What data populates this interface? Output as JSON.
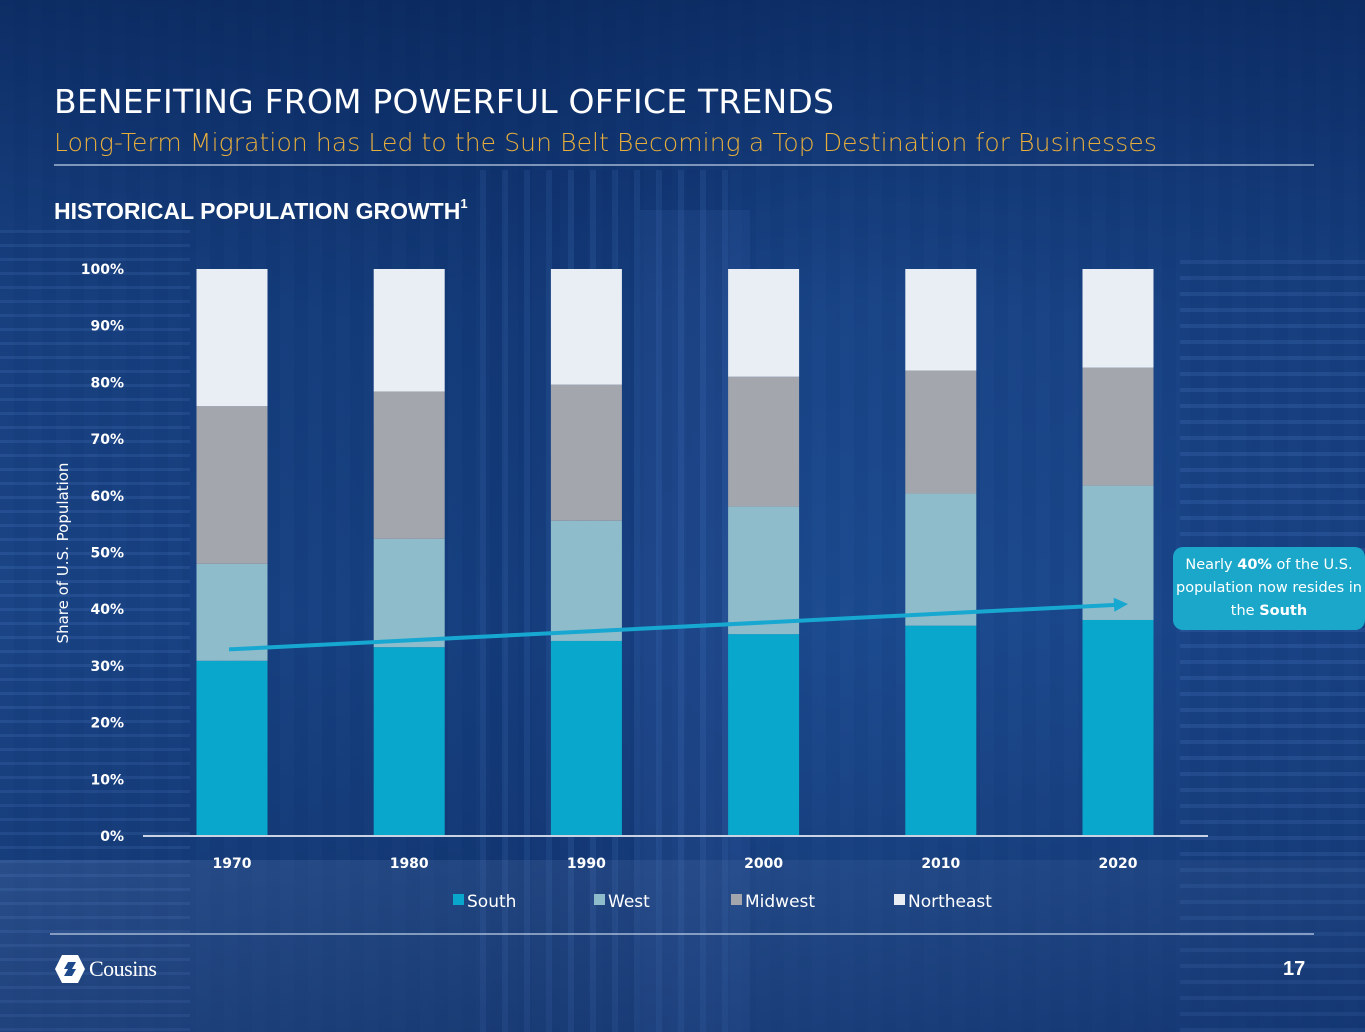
{
  "slide": {
    "title": "BENEFITING FROM POWERFUL OFFICE TRENDS",
    "subtitle": "Long-Term Migration has Led to the Sun Belt Becoming a Top Destination for Businesses",
    "section_title": "HISTORICAL POPULATION GROWTH",
    "section_footnote": "1",
    "page_number": "17",
    "logo_text": "Cousins",
    "logo_icon": "cousins-hexagon-logo-icon"
  },
  "callout": {
    "prefix": "Nearly ",
    "highlight": "40%",
    "middle": " of the U.S. population now resides in the ",
    "highlight2": "South"
  },
  "colors": {
    "south": "#0aa7cc",
    "west": "#8fbccb",
    "midwest": "#a3a6ad",
    "northeast": "#e9edf4",
    "title": "#ffffff",
    "subtitle": "#e7ae3c",
    "callout_bg": "#1aa7c9",
    "arrow": "#17a8d1"
  },
  "chart_data": {
    "type": "bar",
    "stacked": true,
    "title": "HISTORICAL POPULATION GROWTH",
    "xlabel": "",
    "ylabel": "Share of U.S. Population",
    "ylim": [
      0,
      100
    ],
    "yticks": [
      "0%",
      "10%",
      "20%",
      "30%",
      "40%",
      "50%",
      "60%",
      "70%",
      "80%",
      "90%",
      "100%"
    ],
    "categories": [
      "1970",
      "1980",
      "1990",
      "2000",
      "2010",
      "2020"
    ],
    "series": [
      {
        "name": "South",
        "values": [
          30.9,
          33.3,
          34.4,
          35.6,
          37.1,
          38.1
        ]
      },
      {
        "name": "West",
        "values": [
          17.1,
          19.1,
          21.2,
          22.5,
          23.3,
          23.7
        ]
      },
      {
        "name": "Midwest",
        "values": [
          27.8,
          26.0,
          24.0,
          22.9,
          21.7,
          20.8
        ]
      },
      {
        "name": "Northeast",
        "values": [
          24.2,
          21.6,
          20.4,
          19.0,
          17.9,
          17.4
        ]
      }
    ],
    "legend": [
      "South",
      "West",
      "Midwest",
      "Northeast"
    ],
    "legend_position": "bottom",
    "grid": false,
    "annotation": {
      "type": "trend-arrow",
      "from_category": "1970",
      "to_category": "2020",
      "from_value": 33,
      "to_value": 41,
      "text": "Nearly 40% of the U.S. population now resides in the South"
    }
  }
}
